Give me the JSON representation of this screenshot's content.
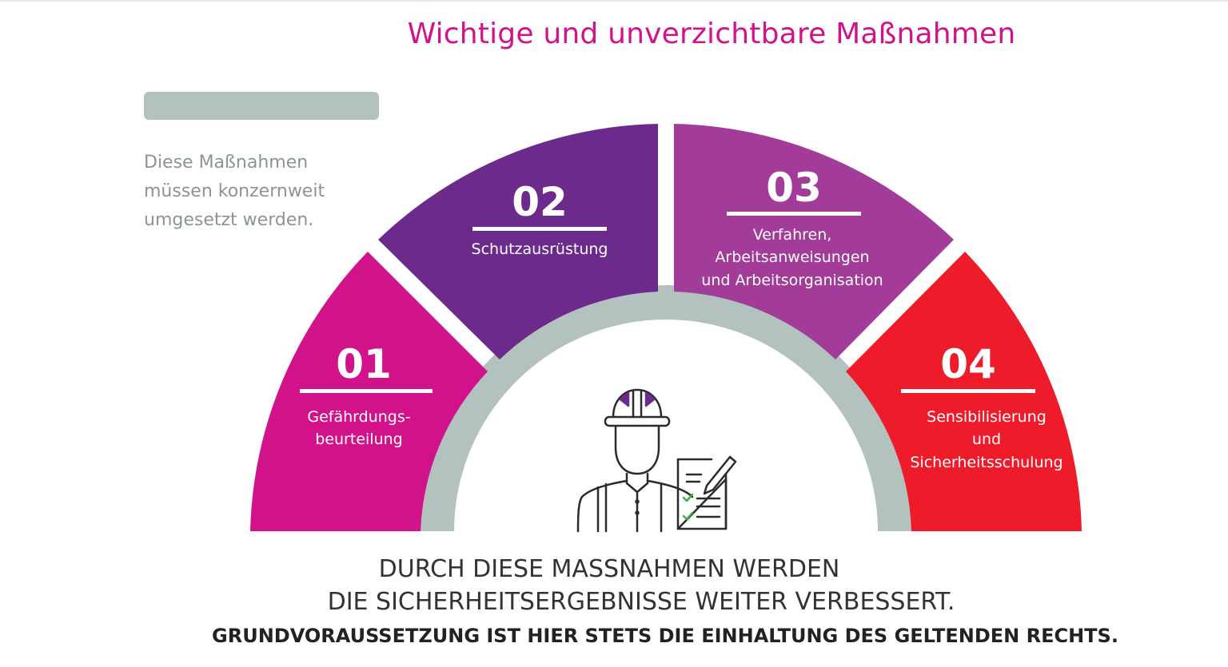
{
  "title": "Wichtige und unverzichtbare Maßnahmen",
  "intro_lines": [
    "Diese Maßnahmen",
    "müssen konzernweit",
    "umgesetzt werden."
  ],
  "segments": [
    {
      "number": "01",
      "label_lines": [
        "Gefährdungs-",
        "beurteilung"
      ],
      "color": "#d1128b"
    },
    {
      "number": "02",
      "label_lines": [
        "Schutzausrüstung"
      ],
      "color": "#6c2b8c"
    },
    {
      "number": "03",
      "label_lines": [
        "Verfahren,",
        "Arbeitsanweisungen",
        "und Arbeitsorganisation"
      ],
      "color": "#a23c98"
    },
    {
      "number": "04",
      "label_lines": [
        "Sensibilisierung",
        "und",
        "Sicherheitsschulung"
      ],
      "color": "#ee1c2b"
    }
  ],
  "icons": {
    "worker": "construction-worker-icon",
    "checklist": "clipboard-checklist-icon"
  },
  "gear_color": "#b3c1bf",
  "bottom_lines": [
    "DURCH DIESE MASSNAHMEN WERDEN",
    "DIE SICHERHEITSERGEBNISSE WEITER VERBESSERT.",
    "GRUNDVORAUSSETZUNG IST HIER STETS DIE EINHALTUNG DES GELTENDEN RECHTS."
  ]
}
